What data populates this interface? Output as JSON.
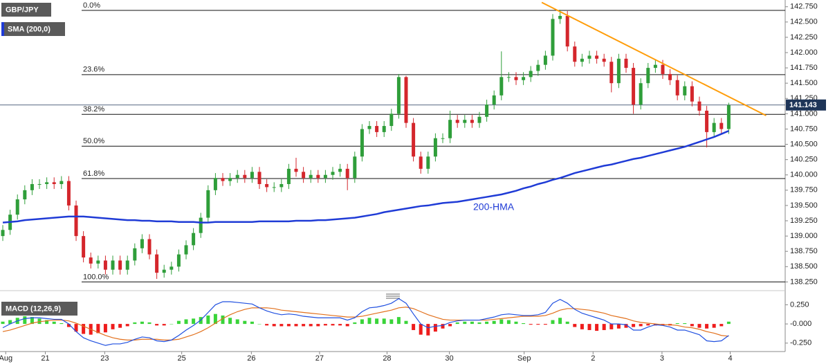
{
  "chart_data": [
    {
      "type": "candlestick",
      "title": "GBP/JPY",
      "indicator": "SMA (200,0)",
      "up_color": "#2f9e3a",
      "down_color": "#d4262c",
      "xlim": [
        -0.38,
        106.7
      ],
      "ylim": [
        138.13,
        142.86
      ],
      "yticks": [
        {
          "value": 138.25,
          "label": "138.250"
        },
        {
          "value": 138.5,
          "label": "138.500"
        },
        {
          "value": 138.75,
          "label": "138.750"
        },
        {
          "value": 139,
          "label": "139.000"
        },
        {
          "value": 139.25,
          "label": "139.250"
        },
        {
          "value": 139.5,
          "label": "139.500"
        },
        {
          "value": 139.75,
          "label": "139.750"
        },
        {
          "value": 140,
          "label": "140.000"
        },
        {
          "value": 140.25,
          "label": "140.250"
        },
        {
          "value": 140.5,
          "label": "140.500"
        },
        {
          "value": 140.75,
          "label": "140.750"
        },
        {
          "value": 141,
          "label": "141.000"
        },
        {
          "value": 141.25,
          "label": "141.250"
        },
        {
          "value": 141.5,
          "label": "141.500"
        },
        {
          "value": 141.75,
          "label": "141.750"
        },
        {
          "value": 142,
          "label": "142.000"
        },
        {
          "value": 142.25,
          "label": "142.250"
        },
        {
          "value": 142.5,
          "label": "142.500"
        },
        {
          "value": 142.75,
          "label": "142.750"
        }
      ],
      "open": [
        139.0,
        139.1,
        139.35,
        139.6,
        139.75,
        139.85,
        139.85,
        139.88,
        139.85,
        139.9,
        139.5,
        139.0,
        138.65,
        138.55,
        138.6,
        138.45,
        138.6,
        138.45,
        138.6,
        138.8,
        138.95,
        138.7,
        138.4,
        138.45,
        138.5,
        138.7,
        138.85,
        139.05,
        139.3,
        139.75,
        139.95,
        139.9,
        139.95,
        140.0,
        139.95,
        140.05,
        139.85,
        139.8,
        139.8,
        139.85,
        140.1,
        140.05,
        139.95,
        140.0,
        139.95,
        140.0,
        140.05,
        140.1,
        139.95,
        140.3,
        140.75,
        140.8,
        140.7,
        140.8,
        141.0,
        141.6,
        140.85,
        140.3,
        140.1,
        140.3,
        140.6,
        140.6,
        140.9,
        140.85,
        140.9,
        140.85,
        140.95,
        141.15,
        141.3,
        141.6,
        141.6,
        141.55,
        141.6,
        141.7,
        141.8,
        141.95,
        142.55,
        142.6,
        142.1,
        141.85,
        141.9,
        141.95,
        141.9,
        141.85,
        141.5,
        141.9,
        141.75,
        141.15,
        141.5,
        141.75,
        141.8,
        141.65,
        141.55,
        141.3,
        141.45,
        141.2,
        141.05,
        140.7,
        140.85,
        140.75
      ],
      "high": [
        139.18,
        139.43,
        139.68,
        139.83,
        139.93,
        139.93,
        139.96,
        139.96,
        139.98,
        139.98,
        139.58,
        139.08,
        138.73,
        138.68,
        138.68,
        138.68,
        138.68,
        138.68,
        138.88,
        139.03,
        139.03,
        138.78,
        138.53,
        138.58,
        138.78,
        138.93,
        139.13,
        139.38,
        139.83,
        140.03,
        140.03,
        140.03,
        140.08,
        140.08,
        140.13,
        140.13,
        139.93,
        139.88,
        139.93,
        140.18,
        140.28,
        140.13,
        140.08,
        140.08,
        140.08,
        140.13,
        140.18,
        140.18,
        140.38,
        140.83,
        140.88,
        140.88,
        140.88,
        141.08,
        141.65,
        141.62,
        140.93,
        140.38,
        140.38,
        140.68,
        140.68,
        141.05,
        140.98,
        140.98,
        140.98,
        141.03,
        141.23,
        141.38,
        142.02,
        141.68,
        141.68,
        141.68,
        141.78,
        141.88,
        142.03,
        142.63,
        142.7,
        142.68,
        142.18,
        141.98,
        142.03,
        142.03,
        141.98,
        141.93,
        141.98,
        141.98,
        141.83,
        141.58,
        141.83,
        141.88,
        141.88,
        141.73,
        141.63,
        141.53,
        141.53,
        141.28,
        141.13,
        140.93,
        140.93,
        141.18
      ],
      "low": [
        138.92,
        139.02,
        139.27,
        139.52,
        139.67,
        139.77,
        139.77,
        139.77,
        139.77,
        139.42,
        138.92,
        138.57,
        138.47,
        138.47,
        138.37,
        138.37,
        138.37,
        138.37,
        138.52,
        138.72,
        138.62,
        138.3,
        138.32,
        138.37,
        138.42,
        138.62,
        138.77,
        138.97,
        139.22,
        139.67,
        139.82,
        139.82,
        139.87,
        139.87,
        139.87,
        139.77,
        139.72,
        139.72,
        139.72,
        139.77,
        139.97,
        139.87,
        139.87,
        139.87,
        139.87,
        139.92,
        139.97,
        139.75,
        139.87,
        140.22,
        140.67,
        140.62,
        140.62,
        140.72,
        140.92,
        140.77,
        140.22,
        140.02,
        140.02,
        140.22,
        140.52,
        140.52,
        140.77,
        140.77,
        140.77,
        140.77,
        140.87,
        141.07,
        141.22,
        141.52,
        141.47,
        141.47,
        141.52,
        141.62,
        141.72,
        141.87,
        142.47,
        142.02,
        141.77,
        141.77,
        141.82,
        141.82,
        141.77,
        141.35,
        141.42,
        141.67,
        141.0,
        141.07,
        141.42,
        141.67,
        141.57,
        141.47,
        141.22,
        141.22,
        141.12,
        140.97,
        140.45,
        140.62,
        140.67,
        140.67
      ],
      "close": [
        139.1,
        139.35,
        139.6,
        139.75,
        139.85,
        139.85,
        139.88,
        139.85,
        139.9,
        139.5,
        139.0,
        138.65,
        138.55,
        138.6,
        138.45,
        138.6,
        138.45,
        138.6,
        138.8,
        138.95,
        138.7,
        138.4,
        138.45,
        138.5,
        138.7,
        138.85,
        139.05,
        139.3,
        139.75,
        139.95,
        139.9,
        139.95,
        140.0,
        139.95,
        140.05,
        139.85,
        139.8,
        139.8,
        139.85,
        140.1,
        140.05,
        139.95,
        140.0,
        139.95,
        140.0,
        140.05,
        140.1,
        139.95,
        140.3,
        140.75,
        140.8,
        140.7,
        140.8,
        141.0,
        141.6,
        140.85,
        140.3,
        140.1,
        140.3,
        140.6,
        140.6,
        140.9,
        140.85,
        140.9,
        140.85,
        140.95,
        141.15,
        141.3,
        141.6,
        141.6,
        141.55,
        141.6,
        141.7,
        141.8,
        141.95,
        142.55,
        142.6,
        142.1,
        141.85,
        141.9,
        141.95,
        141.9,
        141.85,
        141.5,
        141.9,
        141.75,
        141.15,
        141.5,
        141.75,
        141.8,
        141.65,
        141.55,
        141.3,
        141.45,
        141.2,
        141.05,
        140.7,
        140.85,
        140.75,
        141.14
      ],
      "lines": [
        {
          "name": "200-HMA",
          "color": "#1f3bd6",
          "values": [
            139.22,
            139.23,
            139.24,
            139.26,
            139.27,
            139.28,
            139.29,
            139.3,
            139.31,
            139.32,
            139.32,
            139.32,
            139.31,
            139.3,
            139.29,
            139.28,
            139.27,
            139.26,
            139.26,
            139.25,
            139.25,
            139.24,
            139.24,
            139.24,
            139.23,
            139.23,
            139.23,
            139.22,
            139.22,
            139.23,
            139.23,
            139.23,
            139.23,
            139.23,
            139.23,
            139.24,
            139.24,
            139.24,
            139.24,
            139.24,
            139.25,
            139.25,
            139.25,
            139.26,
            139.26,
            139.27,
            139.28,
            139.29,
            139.3,
            139.32,
            139.34,
            139.36,
            139.39,
            139.41,
            139.43,
            139.45,
            139.47,
            139.49,
            139.5,
            139.52,
            139.54,
            139.55,
            139.56,
            139.58,
            139.6,
            139.62,
            139.64,
            139.66,
            139.68,
            139.71,
            139.74,
            139.78,
            139.81,
            139.85,
            139.88,
            139.92,
            139.95,
            139.99,
            140.03,
            140.06,
            140.09,
            140.12,
            140.15,
            140.17,
            140.2,
            140.23,
            140.26,
            140.28,
            140.31,
            140.34,
            140.37,
            140.4,
            140.43,
            140.46,
            140.5,
            140.54,
            140.58,
            140.62,
            140.67,
            140.72
          ]
        }
      ],
      "trendline": {
        "color": "#ff9d0a",
        "x": [
          73.5,
          104.1
        ],
        "y": [
          142.82,
          140.97
        ]
      },
      "fib_levels": [
        {
          "label": "0.0%",
          "price": 142.69
        },
        {
          "label": "23.6%",
          "price": 141.64
        },
        {
          "label": "38.2%",
          "price": 140.99
        },
        {
          "label": "50.0%",
          "price": 140.47
        },
        {
          "label": "61.8%",
          "price": 139.94
        },
        {
          "label": "100.0%",
          "price": 138.25
        }
      ],
      "last_price": 141.143,
      "last_price_color": "#1e3558"
    },
    {
      "type": "macd",
      "title": "MACD (12,26,9)",
      "xlim": [
        -0.38,
        106.7
      ],
      "ylim": [
        -0.36,
        0.38
      ],
      "yticks": [
        {
          "value": 0.25,
          "label": "0.250"
        },
        {
          "value": 0,
          "label": "-0.000"
        },
        {
          "value": -0.25,
          "label": "-0.250"
        }
      ],
      "xticks": [
        {
          "value": 0.4,
          "label": "Aug"
        },
        {
          "value": 5.8,
          "label": "21"
        },
        {
          "value": 13.9,
          "label": "23"
        },
        {
          "value": 24.4,
          "label": "25"
        },
        {
          "value": 33.9,
          "label": "26"
        },
        {
          "value": 43.2,
          "label": "27"
        },
        {
          "value": 52.4,
          "label": "28"
        },
        {
          "value": 60.9,
          "label": "30"
        },
        {
          "value": 71.1,
          "label": "Sep"
        },
        {
          "value": 80.5,
          "label": "2"
        },
        {
          "value": 89.9,
          "label": "3"
        },
        {
          "value": 99.2,
          "label": "4"
        }
      ],
      "macd_line": {
        "color": "#1f4fe0",
        "values": [
          -0.05,
          0.0,
          0.04,
          0.07,
          0.08,
          0.08,
          0.07,
          0.06,
          0.06,
          0.0,
          -0.1,
          -0.18,
          -0.22,
          -0.25,
          -0.28,
          -0.26,
          -0.26,
          -0.24,
          -0.2,
          -0.17,
          -0.18,
          -0.22,
          -0.23,
          -0.21,
          -0.15,
          -0.08,
          -0.02,
          0.05,
          0.15,
          0.25,
          0.29,
          0.29,
          0.28,
          0.27,
          0.26,
          0.21,
          0.17,
          0.14,
          0.12,
          0.13,
          0.12,
          0.1,
          0.09,
          0.08,
          0.08,
          0.08,
          0.08,
          0.05,
          0.08,
          0.16,
          0.21,
          0.22,
          0.24,
          0.27,
          0.33,
          0.27,
          0.13,
          0.0,
          -0.05,
          -0.03,
          -0.02,
          0.02,
          0.04,
          0.05,
          0.05,
          0.05,
          0.07,
          0.09,
          0.12,
          0.13,
          0.12,
          0.11,
          0.11,
          0.12,
          0.15,
          0.27,
          0.32,
          0.27,
          0.19,
          0.14,
          0.11,
          0.08,
          0.05,
          0.0,
          0.0,
          -0.01,
          -0.08,
          -0.08,
          -0.04,
          -0.01,
          -0.02,
          -0.04,
          -0.08,
          -0.08,
          -0.11,
          -0.14,
          -0.22,
          -0.23,
          -0.22,
          -0.15
        ]
      },
      "signal_line": {
        "color": "#e2701c",
        "values": [
          -0.1,
          -0.08,
          -0.05,
          -0.02,
          0.01,
          0.03,
          0.04,
          0.05,
          0.05,
          0.04,
          0.01,
          -0.03,
          -0.07,
          -0.11,
          -0.15,
          -0.18,
          -0.2,
          -0.21,
          -0.21,
          -0.2,
          -0.2,
          -0.2,
          -0.21,
          -0.21,
          -0.2,
          -0.17,
          -0.14,
          -0.1,
          -0.05,
          0.01,
          0.07,
          0.12,
          0.16,
          0.19,
          0.21,
          0.21,
          0.21,
          0.2,
          0.18,
          0.17,
          0.16,
          0.15,
          0.14,
          0.13,
          0.12,
          0.11,
          0.1,
          0.09,
          0.09,
          0.1,
          0.12,
          0.14,
          0.16,
          0.18,
          0.21,
          0.22,
          0.2,
          0.16,
          0.12,
          0.09,
          0.06,
          0.05,
          0.05,
          0.05,
          0.05,
          0.05,
          0.05,
          0.06,
          0.07,
          0.08,
          0.09,
          0.1,
          0.1,
          0.1,
          0.11,
          0.14,
          0.18,
          0.2,
          0.2,
          0.19,
          0.18,
          0.16,
          0.14,
          0.11,
          0.09,
          0.07,
          0.04,
          0.02,
          0.01,
          0.0,
          -0.01,
          -0.01,
          -0.02,
          -0.04,
          -0.05,
          -0.07,
          -0.1,
          -0.12,
          -0.15,
          -0.16
        ]
      },
      "histogram": {
        "up_color": "#3ad43a",
        "down_color": "#ee1c1c",
        "values": [
          0.03,
          0.05,
          0.08,
          0.1,
          0.09,
          0.07,
          0.05,
          0.03,
          0.01,
          -0.04,
          -0.1,
          -0.13,
          -0.14,
          -0.12,
          -0.11,
          -0.07,
          -0.05,
          -0.03,
          0.02,
          0.03,
          0.02,
          -0.02,
          -0.02,
          0.0,
          0.04,
          0.06,
          0.07,
          0.09,
          0.11,
          0.13,
          0.11,
          0.08,
          0.06,
          0.04,
          0.03,
          0.0,
          -0.02,
          -0.03,
          -0.03,
          -0.03,
          -0.03,
          -0.03,
          -0.03,
          -0.03,
          -0.02,
          -0.02,
          -0.02,
          -0.03,
          0.02,
          0.06,
          0.08,
          0.07,
          0.07,
          0.06,
          0.09,
          0.04,
          -0.08,
          -0.14,
          -0.15,
          -0.1,
          -0.06,
          -0.03,
          0.02,
          0.03,
          0.03,
          0.02,
          0.03,
          0.04,
          0.06,
          0.05,
          0.03,
          0.01,
          -0.01,
          -0.01,
          -0.01,
          0.05,
          0.08,
          0.03,
          -0.04,
          -0.07,
          -0.08,
          -0.09,
          -0.08,
          -0.07,
          -0.06,
          -0.05,
          -0.04,
          -0.03,
          -0.02,
          -0.02,
          -0.02,
          -0.02,
          0.01,
          0.01,
          -0.03,
          -0.05,
          -0.06,
          -0.05,
          -0.03,
          0.03
        ]
      }
    }
  ]
}
